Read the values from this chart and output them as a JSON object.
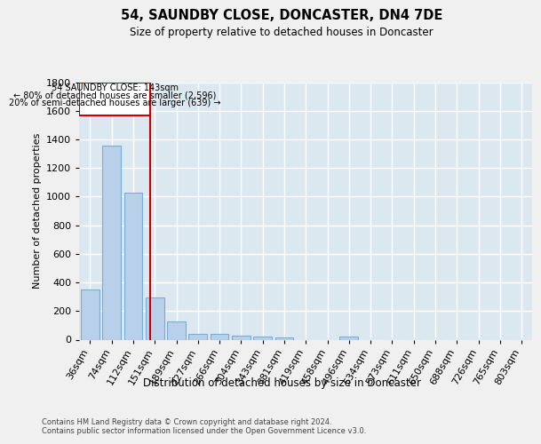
{
  "title": "54, SAUNDBY CLOSE, DONCASTER, DN4 7DE",
  "subtitle": "Size of property relative to detached houses in Doncaster",
  "xlabel": "Distribution of detached houses by size in Doncaster",
  "ylabel": "Number of detached properties",
  "categories": [
    "36sqm",
    "74sqm",
    "112sqm",
    "151sqm",
    "189sqm",
    "227sqm",
    "266sqm",
    "304sqm",
    "343sqm",
    "381sqm",
    "419sqm",
    "458sqm",
    "496sqm",
    "534sqm",
    "573sqm",
    "611sqm",
    "650sqm",
    "688sqm",
    "726sqm",
    "765sqm",
    "803sqm"
  ],
  "values": [
    350,
    1355,
    1025,
    293,
    130,
    42,
    38,
    30,
    20,
    17,
    0,
    0,
    20,
    0,
    0,
    0,
    0,
    0,
    0,
    0,
    0
  ],
  "bar_color": "#b8d0ea",
  "bar_edge_color": "#7aadd4",
  "annotation_label": "54 SAUNDBY CLOSE: 143sqm",
  "annotation_line1": "← 80% of detached houses are smaller (2,596)",
  "annotation_line2": "20% of semi-detached houses are larger (639) →",
  "annotation_box_color": "#ffffff",
  "annotation_box_edge_color": "#cc0000",
  "vline_color": "#cc0000",
  "ylim": [
    0,
    1800
  ],
  "background_color": "#dce8f0",
  "grid_color": "#ffffff",
  "fig_background": "#f0f0f0",
  "footer_line1": "Contains HM Land Registry data © Crown copyright and database right 2024.",
  "footer_line2": "Contains public sector information licensed under the Open Government Licence v3.0."
}
